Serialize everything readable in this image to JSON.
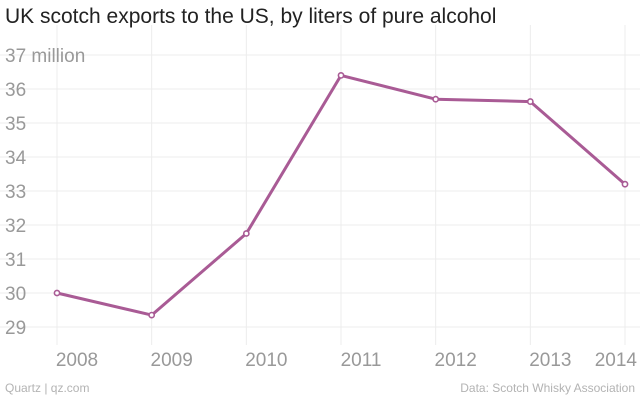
{
  "chart_data": {
    "type": "line",
    "title": "UK scotch exports to the US, by liters of pure alcohol",
    "xlabel": "",
    "ylabel": "",
    "y_top_label": "37 million",
    "categories": [
      "2008",
      "2009",
      "2010",
      "2011",
      "2012",
      "2013",
      "2014"
    ],
    "series": [
      {
        "name": "Liters of pure alcohol (millions)",
        "values": [
          30.0,
          29.35,
          31.75,
          36.4,
          35.7,
          35.63,
          33.2
        ]
      }
    ],
    "ylim": [
      28.7,
      37
    ],
    "yticks": [
      29,
      30,
      31,
      32,
      33,
      34,
      35,
      36,
      37
    ],
    "ytick_labels": [
      "29",
      "30",
      "31",
      "32",
      "33",
      "34",
      "35",
      "36",
      "37 million"
    ],
    "grid": true,
    "line_color": "#a95b95"
  },
  "footer": {
    "source_left": "Quartz | qz.com",
    "source_right": "Data: Scotch Whisky Association"
  }
}
